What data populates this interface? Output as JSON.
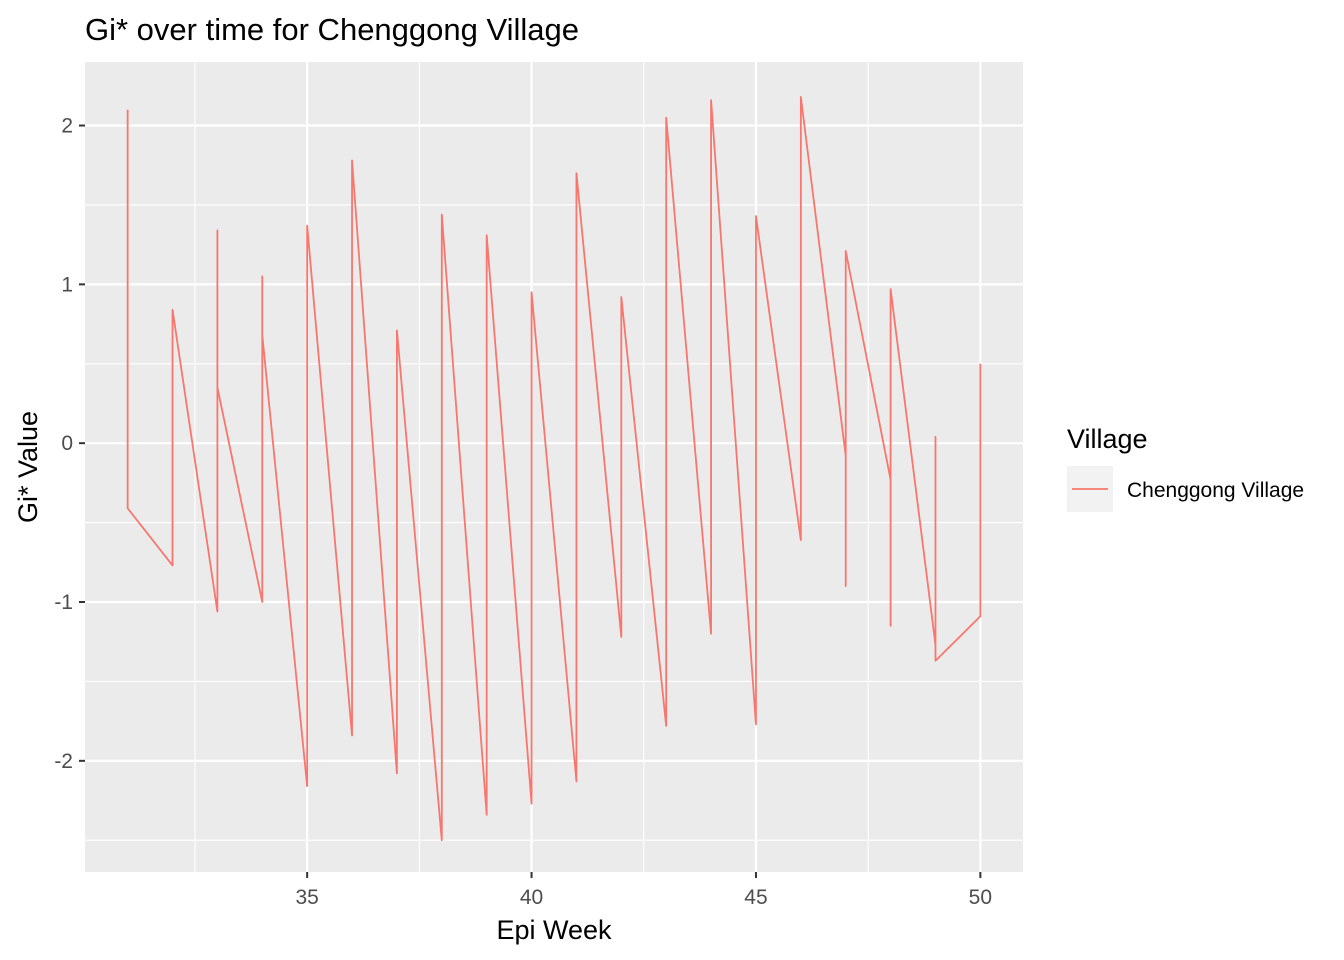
{
  "chart_data": {
    "type": "line",
    "title": "Gi* over time for Chenggong Village",
    "xlabel": "Epi Week",
    "ylabel": "Gi* Value",
    "xlim": [
      30.05,
      50.95
    ],
    "ylim": [
      -2.7,
      2.4
    ],
    "x_ticks": [
      35,
      40,
      45,
      50
    ],
    "x_tick_labels": [
      "35",
      "40",
      "45",
      "50"
    ],
    "x_minor_ticks": [
      32.5,
      37.5,
      42.5,
      47.5
    ],
    "y_ticks": [
      -2,
      -1,
      0,
      1,
      2
    ],
    "y_tick_labels": [
      "-2",
      "-1",
      "0",
      "1",
      "2"
    ],
    "y_minor_ticks": [
      -2.5,
      -1.5,
      -0.5,
      0.5,
      1.5
    ],
    "grid": true,
    "background": "#ebebeb",
    "legend": {
      "title": "Village",
      "position": "right"
    },
    "series": [
      {
        "name": "Chenggong Village",
        "color": "#f8766d",
        "x": [
          31,
          31,
          32,
          32,
          33,
          33,
          33,
          34,
          34,
          34,
          35,
          35,
          36,
          36,
          37,
          37,
          38,
          38,
          39,
          39,
          40,
          40,
          41,
          41,
          42,
          42,
          43,
          43,
          44,
          44,
          45,
          45,
          46,
          46,
          47,
          47,
          47,
          48,
          48,
          48,
          49,
          49,
          49,
          50,
          50
        ],
        "y": [
          2.1,
          -0.41,
          -0.77,
          0.84,
          -1.06,
          1.34,
          0.35,
          -1.0,
          1.05,
          0.68,
          -2.16,
          1.37,
          -1.84,
          1.78,
          -2.08,
          0.71,
          -2.5,
          1.44,
          -2.34,
          1.31,
          -2.27,
          0.95,
          -2.13,
          1.7,
          -1.22,
          0.92,
          -1.78,
          2.05,
          -1.2,
          2.16,
          -1.77,
          1.43,
          -0.61,
          2.18,
          -0.08,
          -0.9,
          1.21,
          -0.23,
          -1.15,
          0.97,
          -1.27,
          0.04,
          -1.37,
          -1.09,
          0.5
        ]
      }
    ]
  }
}
